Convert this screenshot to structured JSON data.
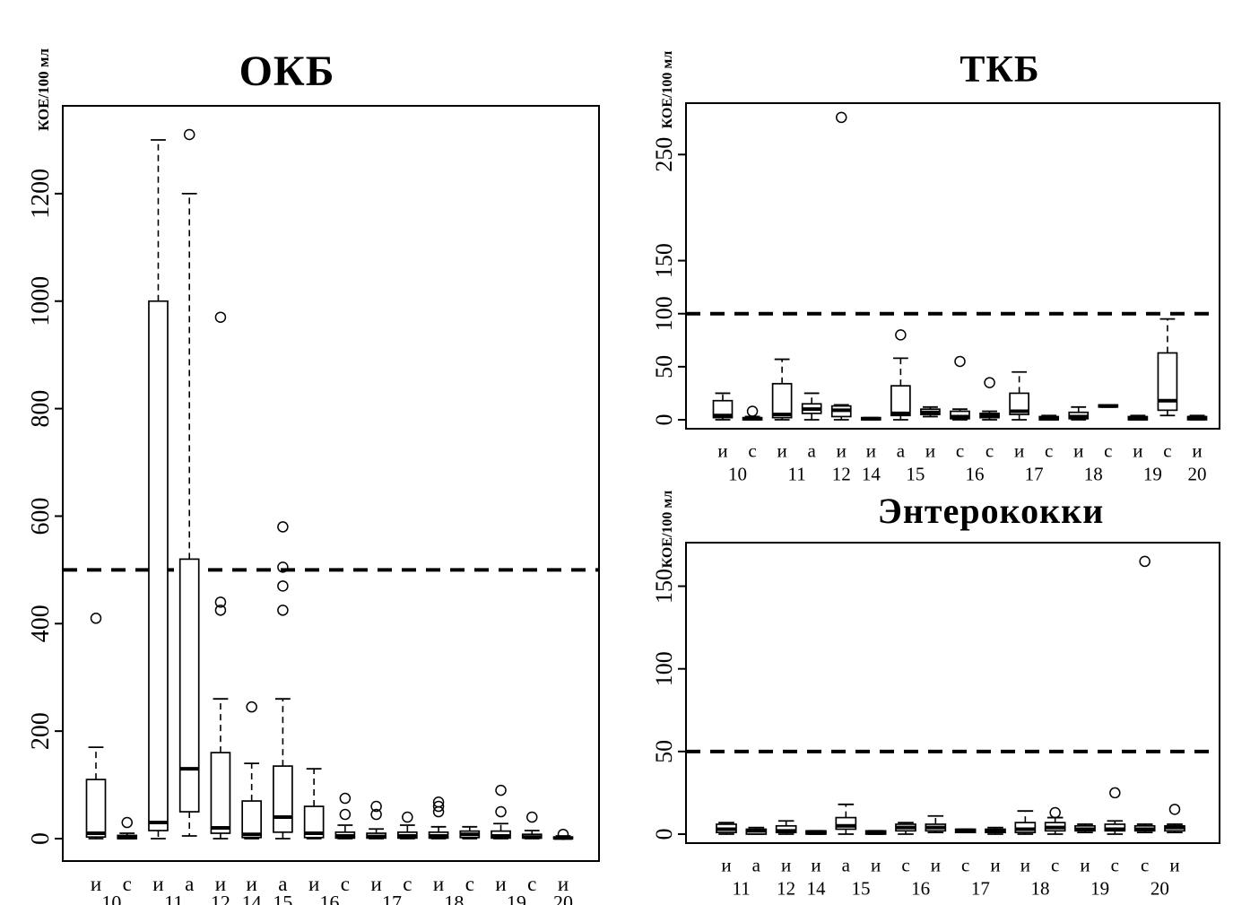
{
  "colors": {
    "ink": "#000000",
    "background": "#ffffff"
  },
  "chart_data": [
    {
      "type": "boxplot",
      "title": "ОКБ",
      "ylabel": "КОЕ/100 мл",
      "ylim": [
        0,
        1330
      ],
      "yticks": [
        0,
        200,
        400,
        600,
        800,
        1000,
        1200
      ],
      "threshold": 500,
      "threshold_style": "dashed",
      "grid": false,
      "boxes": [
        {
          "letter": "и",
          "q1": 3,
          "median": 10,
          "q3": 110,
          "whisker_low": 0,
          "whisker_high": 170,
          "outliers": [
            410
          ]
        },
        {
          "letter": "с",
          "q1": 0,
          "median": 2,
          "q3": 6,
          "whisker_low": 0,
          "whisker_high": 10,
          "outliers": [
            30
          ]
        },
        {
          "letter": "и",
          "q1": 15,
          "median": 30,
          "q3": 1000,
          "whisker_low": 0,
          "whisker_high": 1300,
          "outliers": []
        },
        {
          "letter": "а",
          "q1": 50,
          "median": 130,
          "q3": 520,
          "whisker_low": 5,
          "whisker_high": 1200,
          "outliers": [
            1310
          ]
        },
        {
          "letter": "и",
          "q1": 10,
          "median": 20,
          "q3": 160,
          "whisker_low": 0,
          "whisker_high": 260,
          "outliers": [
            425,
            440,
            970
          ]
        },
        {
          "letter": "и",
          "q1": 2,
          "median": 8,
          "q3": 70,
          "whisker_low": 0,
          "whisker_high": 140,
          "outliers": [
            245
          ]
        },
        {
          "letter": "а",
          "q1": 12,
          "median": 40,
          "q3": 135,
          "whisker_low": 0,
          "whisker_high": 260,
          "outliers": [
            425,
            470,
            505,
            580
          ]
        },
        {
          "letter": "и",
          "q1": 2,
          "median": 10,
          "q3": 60,
          "whisker_low": 0,
          "whisker_high": 130,
          "outliers": []
        },
        {
          "letter": "с",
          "q1": 1,
          "median": 5,
          "q3": 12,
          "whisker_low": 0,
          "whisker_high": 25,
          "outliers": [
            45,
            75
          ]
        },
        {
          "letter": "и",
          "q1": 1,
          "median": 4,
          "q3": 10,
          "whisker_low": 0,
          "whisker_high": 18,
          "outliers": [
            45,
            60
          ]
        },
        {
          "letter": "с",
          "q1": 1,
          "median": 5,
          "q3": 12,
          "whisker_low": 0,
          "whisker_high": 25,
          "outliers": [
            40
          ]
        },
        {
          "letter": "и",
          "q1": 1,
          "median": 5,
          "q3": 12,
          "whisker_low": 0,
          "whisker_high": 22,
          "outliers": [
            50,
            60,
            68
          ]
        },
        {
          "letter": "с",
          "q1": 2,
          "median": 8,
          "q3": 14,
          "whisker_low": 0,
          "whisker_high": 22,
          "outliers": []
        },
        {
          "letter": "и",
          "q1": 1,
          "median": 5,
          "q3": 14,
          "whisker_low": 0,
          "whisker_high": 28,
          "outliers": [
            50,
            90
          ]
        },
        {
          "letter": "с",
          "q1": 1,
          "median": 3,
          "q3": 8,
          "whisker_low": 0,
          "whisker_high": 15,
          "outliers": [
            40
          ]
        },
        {
          "letter": "и",
          "q1": 0,
          "median": 1,
          "q3": 3,
          "whisker_low": 0,
          "whisker_high": 5,
          "outliers": [
            8
          ]
        }
      ],
      "groups": [
        {
          "label": "10",
          "span": [
            0,
            1
          ]
        },
        {
          "label": "11",
          "span": [
            2,
            3
          ]
        },
        {
          "label": "12",
          "span": [
            4,
            4
          ]
        },
        {
          "label": "14",
          "span": [
            5,
            5
          ]
        },
        {
          "label": "15",
          "span": [
            6,
            6
          ]
        },
        {
          "label": "16",
          "span": [
            7,
            8
          ]
        },
        {
          "label": "17",
          "span": [
            9,
            10
          ]
        },
        {
          "label": "18",
          "span": [
            11,
            12
          ]
        },
        {
          "label": "19",
          "span": [
            13,
            14
          ]
        },
        {
          "label": "20",
          "span": [
            15,
            15
          ]
        }
      ]
    },
    {
      "type": "boxplot",
      "title": "ТКБ",
      "ylabel": "КОЕ/100 мл",
      "ylim": [
        0,
        290
      ],
      "yticks": [
        0,
        50,
        100,
        150,
        250
      ],
      "threshold": 100,
      "threshold_style": "dashed",
      "grid": false,
      "boxes": [
        {
          "letter": "и",
          "q1": 2,
          "median": 4,
          "q3": 18,
          "whisker_low": 0,
          "whisker_high": 25,
          "outliers": []
        },
        {
          "letter": "с",
          "q1": 0,
          "median": 1,
          "q3": 2,
          "whisker_low": 0,
          "whisker_high": 3,
          "outliers": [
            8
          ]
        },
        {
          "letter": "и",
          "q1": 2,
          "median": 5,
          "q3": 34,
          "whisker_low": 0,
          "whisker_high": 57,
          "outliers": []
        },
        {
          "letter": "а",
          "q1": 6,
          "median": 10,
          "q3": 15,
          "whisker_low": 0,
          "whisker_high": 25,
          "outliers": []
        },
        {
          "letter": "и",
          "q1": 3,
          "median": 9,
          "q3": 13,
          "whisker_low": 0,
          "whisker_high": 14,
          "outliers": [
            285
          ]
        },
        {
          "letter": "и",
          "q1": 0,
          "median": 1,
          "q3": 2,
          "whisker_low": 0,
          "whisker_high": 2,
          "outliers": []
        },
        {
          "letter": "а",
          "q1": 4,
          "median": 6,
          "q3": 32,
          "whisker_low": 0,
          "whisker_high": 58,
          "outliers": [
            80
          ]
        },
        {
          "letter": "и",
          "q1": 5,
          "median": 7,
          "q3": 10,
          "whisker_low": 3,
          "whisker_high": 12,
          "outliers": []
        },
        {
          "letter": "с",
          "q1": 1,
          "median": 3,
          "q3": 8,
          "whisker_low": 0,
          "whisker_high": 10,
          "outliers": [
            55
          ]
        },
        {
          "letter": "с",
          "q1": 2,
          "median": 4,
          "q3": 6,
          "whisker_low": 0,
          "whisker_high": 8,
          "outliers": [
            35
          ]
        },
        {
          "letter": "и",
          "q1": 5,
          "median": 8,
          "q3": 25,
          "whisker_low": 0,
          "whisker_high": 45,
          "outliers": []
        },
        {
          "letter": "с",
          "q1": 0,
          "median": 1,
          "q3": 3,
          "whisker_low": 0,
          "whisker_high": 4,
          "outliers": []
        },
        {
          "letter": "и",
          "q1": 1,
          "median": 3,
          "q3": 7,
          "whisker_low": 0,
          "whisker_high": 12,
          "outliers": []
        },
        {
          "letter": "с",
          "q1": 12,
          "median": 13,
          "q3": 14,
          "whisker_low": 12,
          "whisker_high": 14,
          "outliers": []
        },
        {
          "letter": "и",
          "q1": 0,
          "median": 1,
          "q3": 3,
          "whisker_low": 0,
          "whisker_high": 4,
          "outliers": []
        },
        {
          "letter": "с",
          "q1": 9,
          "median": 18,
          "q3": 63,
          "whisker_low": 4,
          "whisker_high": 95,
          "outliers": []
        },
        {
          "letter": "и",
          "q1": 0,
          "median": 2,
          "q3": 3,
          "whisker_low": 0,
          "whisker_high": 4,
          "outliers": []
        }
      ],
      "groups": [
        {
          "label": "10",
          "span": [
            0,
            1
          ]
        },
        {
          "label": "11",
          "span": [
            2,
            3
          ]
        },
        {
          "label": "12",
          "span": [
            4,
            4
          ]
        },
        {
          "label": "14",
          "span": [
            5,
            5
          ]
        },
        {
          "label": "15",
          "span": [
            6,
            7
          ]
        },
        {
          "label": "16",
          "span": [
            8,
            9
          ]
        },
        {
          "label": "17",
          "span": [
            10,
            11
          ]
        },
        {
          "label": "18",
          "span": [
            12,
            13
          ]
        },
        {
          "label": "19",
          "span": [
            14,
            15
          ]
        },
        {
          "label": "20",
          "span": [
            16,
            16
          ]
        }
      ]
    },
    {
      "type": "boxplot",
      "title": "Энтерококки",
      "ylabel": "КОЕ/100 мл",
      "ylim": [
        0,
        172
      ],
      "yticks": [
        0,
        50,
        100,
        150
      ],
      "threshold": 50,
      "threshold_style": "dashed",
      "grid": false,
      "boxes": [
        {
          "letter": "и",
          "q1": 1,
          "median": 3,
          "q3": 6,
          "whisker_low": 0,
          "whisker_high": 7,
          "outliers": []
        },
        {
          "letter": "а",
          "q1": 0,
          "median": 2,
          "q3": 3,
          "whisker_low": 0,
          "whisker_high": 4,
          "outliers": []
        },
        {
          "letter": "и",
          "q1": 1,
          "median": 2,
          "q3": 5,
          "whisker_low": 0,
          "whisker_high": 8,
          "outliers": []
        },
        {
          "letter": "и",
          "q1": 0,
          "median": 1,
          "q3": 2,
          "whisker_low": 0,
          "whisker_high": 2,
          "outliers": []
        },
        {
          "letter": "а",
          "q1": 3,
          "median": 5,
          "q3": 10,
          "whisker_low": 0,
          "whisker_high": 18,
          "outliers": []
        },
        {
          "letter": "и",
          "q1": 0,
          "median": 1,
          "q3": 2,
          "whisker_low": 0,
          "whisker_high": 2,
          "outliers": []
        },
        {
          "letter": "с",
          "q1": 2,
          "median": 4,
          "q3": 6,
          "whisker_low": 0,
          "whisker_high": 7,
          "outliers": []
        },
        {
          "letter": "и",
          "q1": 2,
          "median": 4,
          "q3": 6,
          "whisker_low": 1,
          "whisker_high": 11,
          "outliers": []
        },
        {
          "letter": "с",
          "q1": 1,
          "median": 2,
          "q3": 3,
          "whisker_low": 1,
          "whisker_high": 3,
          "outliers": []
        },
        {
          "letter": "и",
          "q1": 1,
          "median": 2,
          "q3": 3,
          "whisker_low": 0,
          "whisker_high": 4,
          "outliers": []
        },
        {
          "letter": "и",
          "q1": 1,
          "median": 3,
          "q3": 7,
          "whisker_low": 0,
          "whisker_high": 14,
          "outliers": []
        },
        {
          "letter": "с",
          "q1": 2,
          "median": 4,
          "q3": 7,
          "whisker_low": 0,
          "whisker_high": 10,
          "outliers": [
            13
          ]
        },
        {
          "letter": "и",
          "q1": 2,
          "median": 3,
          "q3": 5,
          "whisker_low": 1,
          "whisker_high": 6,
          "outliers": []
        },
        {
          "letter": "с",
          "q1": 2,
          "median": 3,
          "q3": 6,
          "whisker_low": 0,
          "whisker_high": 8,
          "outliers": [
            25
          ]
        },
        {
          "letter": "с",
          "q1": 2,
          "median": 3,
          "q3": 5,
          "whisker_low": 1,
          "whisker_high": 6,
          "outliers": [
            165
          ]
        },
        {
          "letter": "и",
          "q1": 2,
          "median": 4,
          "q3": 5,
          "whisker_low": 1,
          "whisker_high": 6,
          "outliers": [
            15
          ]
        }
      ],
      "groups": [
        {
          "label": "11",
          "span": [
            0,
            1
          ]
        },
        {
          "label": "12",
          "span": [
            2,
            2
          ]
        },
        {
          "label": "14",
          "span": [
            3,
            3
          ]
        },
        {
          "label": "15",
          "span": [
            4,
            5
          ]
        },
        {
          "label": "16",
          "span": [
            6,
            7
          ]
        },
        {
          "label": "17",
          "span": [
            8,
            9
          ]
        },
        {
          "label": "18",
          "span": [
            10,
            11
          ]
        },
        {
          "label": "19",
          "span": [
            12,
            13
          ]
        },
        {
          "label": "20",
          "span": [
            14,
            15
          ]
        }
      ]
    }
  ]
}
